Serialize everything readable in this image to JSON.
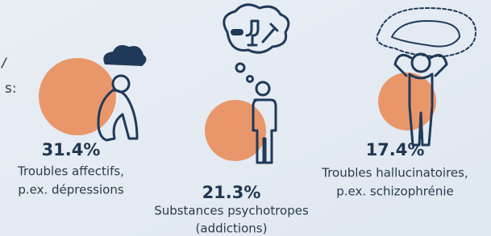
{
  "partial_label": "s:",
  "groups": [
    {
      "percent": "31.4%",
      "lines": [
        "Troubles affectifs,",
        "p.ex. dépressions"
      ]
    },
    {
      "percent": "21.3%",
      "lines": [
        "Substances psychotropes",
        "(addictions)"
      ]
    },
    {
      "percent": "17.4%",
      "lines": [
        "Troubles hallucinatoires,",
        "p.ex. schizophrénie"
      ]
    }
  ]
}
